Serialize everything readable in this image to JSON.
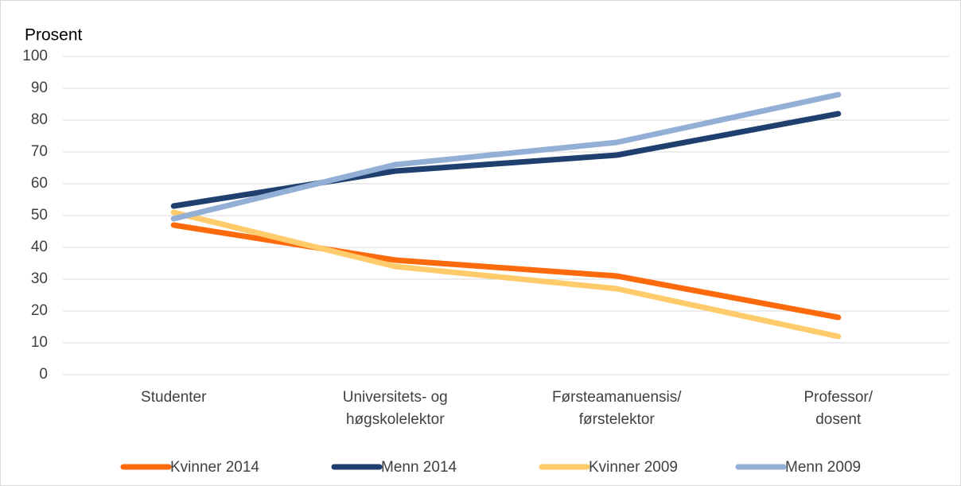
{
  "chart_data": {
    "type": "line",
    "y_label": "Prosent",
    "categories": [
      "Studenter",
      "Universitets- og\nhøgskolelektor",
      "Førsteamanuensis/\nførstelektor",
      "Professor/\ndosent"
    ],
    "series": [
      {
        "name": "Kvinner 2014",
        "color": "#fd6a0c",
        "values": [
          47,
          36,
          31,
          18
        ]
      },
      {
        "name": "Menn 2014",
        "color": "#1f3f6e",
        "values": [
          53,
          64,
          69,
          82
        ]
      },
      {
        "name": "Kvinner 2009",
        "color": "#ffcb6b",
        "values": [
          51,
          34,
          27,
          12
        ]
      },
      {
        "name": "Menn 2009",
        "color": "#93afd6",
        "values": [
          49,
          66,
          73,
          88
        ]
      }
    ],
    "ylim": [
      0,
      100
    ],
    "yticks": [
      0,
      10,
      20,
      30,
      40,
      50,
      60,
      70,
      80,
      90,
      100
    ],
    "grid": true,
    "legend": "bottom"
  }
}
